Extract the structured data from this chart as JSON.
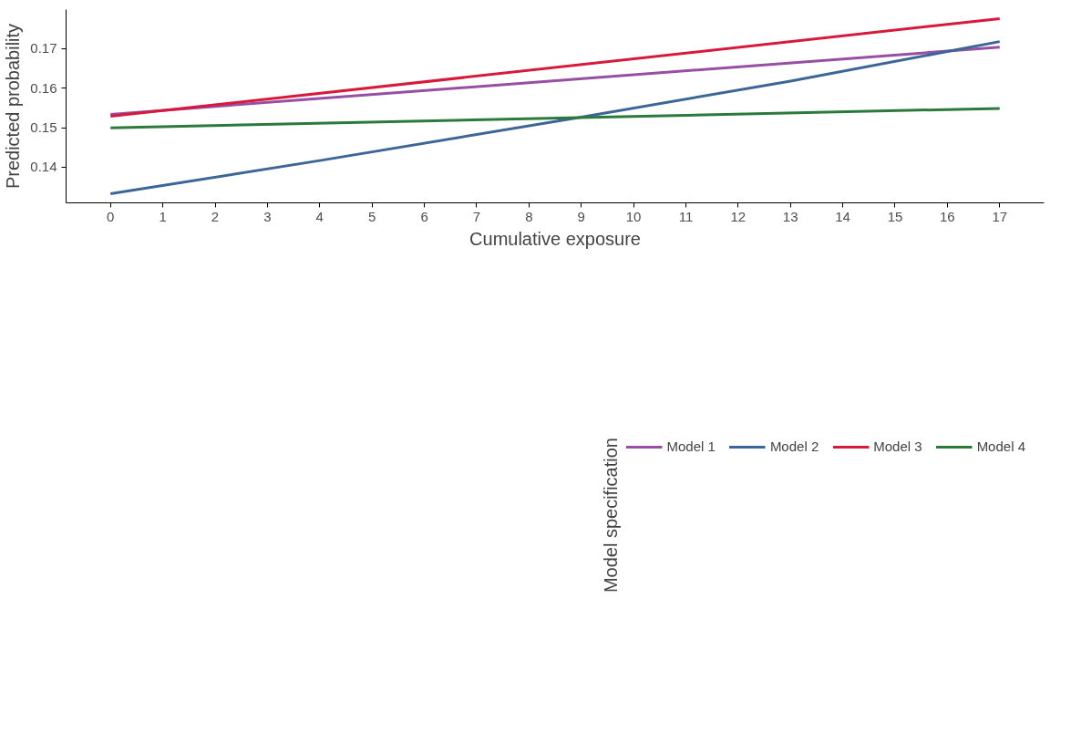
{
  "chart_data": {
    "type": "line",
    "xlabel": "Cumulative exposure",
    "ylabel": "Predicted probability",
    "legend_title": "Model specification",
    "xlim": [
      -0.85,
      17.85
    ],
    "ylim": [
      0.131,
      0.1799
    ],
    "xticks": [
      0,
      1,
      2,
      3,
      4,
      5,
      6,
      7,
      8,
      9,
      10,
      11,
      12,
      13,
      14,
      15,
      16,
      17
    ],
    "yticks": [
      0.14,
      0.15,
      0.16,
      0.17
    ],
    "grid": false,
    "legend": "bottom",
    "marker": "none",
    "line_style": "solid",
    "series": [
      {
        "name": "Model 1",
        "color": "#984ea3",
        "x": [
          0,
          17
        ],
        "values": [
          0.1534,
          0.1704
        ]
      },
      {
        "name": "Model 2",
        "color": "#3c6698",
        "x": [
          0,
          4,
          9,
          13,
          17
        ],
        "values": [
          0.1333,
          0.1417,
          0.1527,
          0.1618,
          0.1718
        ]
      },
      {
        "name": "Model 3",
        "color": "#d7193c",
        "x": [
          0,
          17
        ],
        "values": [
          0.1529,
          0.1776
        ]
      },
      {
        "name": "Model 4",
        "color": "#2b7a3c",
        "x": [
          0,
          17
        ],
        "values": [
          0.15,
          0.1549
        ]
      }
    ]
  }
}
